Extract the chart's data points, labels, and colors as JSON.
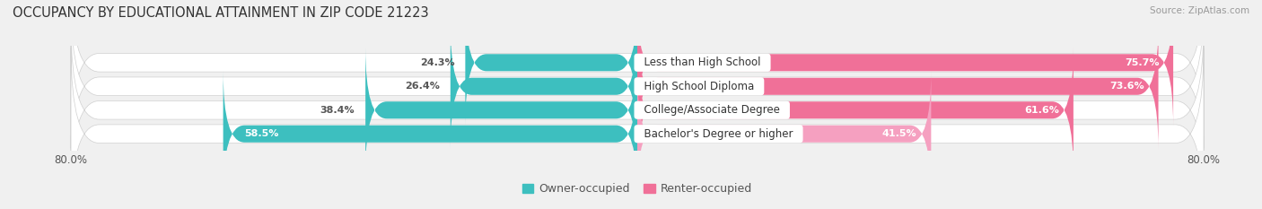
{
  "title": "OCCUPANCY BY EDUCATIONAL ATTAINMENT IN ZIP CODE 21223",
  "source": "Source: ZipAtlas.com",
  "categories": [
    "Less than High School",
    "High School Diploma",
    "College/Associate Degree",
    "Bachelor's Degree or higher"
  ],
  "owner_values": [
    24.3,
    26.4,
    38.4,
    58.5
  ],
  "renter_values": [
    75.7,
    73.6,
    61.6,
    41.5
  ],
  "owner_color": "#3DBFBF",
  "renter_color": "#F07098",
  "renter_color_light": "#F5A0C0",
  "owner_label": "Owner-occupied",
  "renter_label": "Renter-occupied",
  "axis_max": 80.0,
  "background_color": "#f0f0f0",
  "bar_bg_color": "#e0e0e0",
  "row_bg_color": "#ffffff",
  "title_fontsize": 10.5,
  "source_fontsize": 7.5,
  "cat_fontsize": 8.5,
  "value_fontsize": 8,
  "legend_fontsize": 9
}
